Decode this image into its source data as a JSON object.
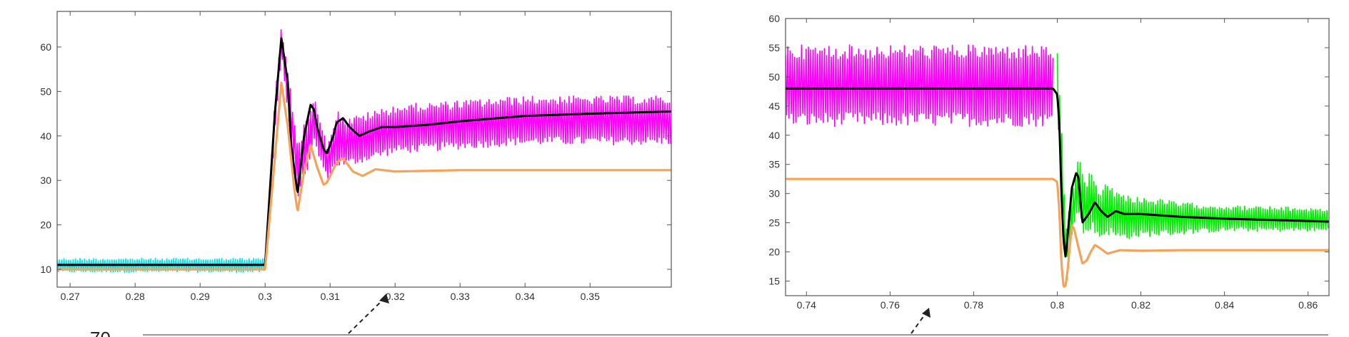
{
  "chart_data": [
    {
      "type": "line",
      "title": "",
      "xlabel": "",
      "ylabel": "",
      "xlim": [
        0.268,
        0.3625
      ],
      "ylim": [
        6,
        68
      ],
      "grid": false,
      "xticks": [
        "0.27",
        "0.28",
        "0.29",
        "0.3",
        "0.31",
        "0.32",
        "0.33",
        "0.34",
        "0.35"
      ],
      "xtick_values": [
        0.27,
        0.28,
        0.29,
        0.3,
        0.31,
        0.32,
        0.33,
        0.34,
        0.35
      ],
      "yticks": [
        "10",
        "20",
        "30",
        "40",
        "50",
        "60"
      ],
      "ytick_values": [
        10,
        20,
        30,
        40,
        50,
        60
      ],
      "series": [
        {
          "color": "#00e5ee",
          "style": "noise-band",
          "x": [
            0.268,
            0.3
          ],
          "low": [
            9.3,
            9.3
          ],
          "high": [
            12.5,
            12.5
          ]
        },
        {
          "color": "#ff00ff",
          "style": "noise-band",
          "x": [
            0.3,
            0.3015,
            0.3025,
            0.304,
            0.305,
            0.3065,
            0.3075,
            0.3095,
            0.311,
            0.3125,
            0.315,
            0.32,
            0.33,
            0.34,
            0.3625
          ],
          "low": [
            11,
            40,
            58,
            38,
            26,
            32,
            38,
            30,
            33,
            33,
            34,
            36,
            37,
            38,
            38
          ],
          "high": [
            11,
            48,
            65,
            50,
            38,
            45,
            50,
            38,
            46,
            44,
            45,
            47,
            48,
            49,
            49
          ]
        },
        {
          "color": "#000000",
          "style": "line",
          "x": [
            0.268,
            0.3,
            0.3015,
            0.3025,
            0.3035,
            0.304,
            0.305,
            0.306,
            0.307,
            0.3075,
            0.308,
            0.309,
            0.3095,
            0.3105,
            0.311,
            0.312,
            0.313,
            0.3145,
            0.316,
            0.318,
            0.32,
            0.325,
            0.33,
            0.34,
            0.35,
            0.3625
          ],
          "y": [
            11,
            11,
            45,
            62,
            52,
            38,
            27,
            40,
            47,
            46,
            42,
            37,
            36,
            40,
            43,
            44,
            42,
            40,
            41,
            42,
            42,
            42.5,
            43.3,
            44.5,
            45,
            45.5
          ]
        },
        {
          "color": "#f5a35a",
          "style": "line",
          "x": [
            0.268,
            0.3,
            0.3015,
            0.3025,
            0.3035,
            0.3045,
            0.305,
            0.306,
            0.307,
            0.308,
            0.309,
            0.3095,
            0.311,
            0.312,
            0.3135,
            0.315,
            0.317,
            0.32,
            0.33,
            0.3625
          ],
          "y": [
            10,
            10,
            35,
            52,
            42,
            28,
            23,
            32,
            38,
            33,
            29,
            29.5,
            34,
            35,
            32,
            31,
            32.5,
            32,
            32.3,
            32.3
          ]
        }
      ]
    },
    {
      "type": "line",
      "title": "",
      "xlabel": "",
      "ylabel": "",
      "xlim": [
        0.735,
        0.865
      ],
      "ylim": [
        12.5,
        60
      ],
      "grid": false,
      "xticks": [
        "0.74",
        "0.76",
        "0.78",
        "0.8",
        "0.82",
        "0.84",
        "0.86"
      ],
      "xtick_values": [
        0.74,
        0.76,
        0.78,
        0.8,
        0.82,
        0.84,
        0.86
      ],
      "yticks": [
        "15",
        "20",
        "25",
        "30",
        "35",
        "40",
        "45",
        "50",
        "55",
        "60"
      ],
      "ytick_values": [
        15,
        20,
        25,
        30,
        35,
        40,
        45,
        50,
        55,
        60
      ],
      "series": [
        {
          "color": "#ff00ff",
          "style": "noise-band",
          "x": [
            0.735,
            0.799
          ],
          "low": [
            41.5,
            41.5
          ],
          "high": [
            55.5,
            55.5
          ]
        },
        {
          "color": "#00ee00",
          "style": "noise-band",
          "x": [
            0.8,
            0.801,
            0.802,
            0.8035,
            0.805,
            0.8065,
            0.808,
            0.81,
            0.812,
            0.815,
            0.82,
            0.83,
            0.84,
            0.865
          ],
          "low": [
            45,
            30,
            18,
            22,
            27,
            22,
            24,
            22,
            23,
            22,
            22.5,
            23,
            23.5,
            23.5
          ],
          "high": [
            55,
            42,
            24,
            30,
            37,
            32,
            34,
            31,
            32,
            30,
            29.5,
            28.5,
            28,
            27.5
          ]
        },
        {
          "color": "#000000",
          "style": "line",
          "x": [
            0.735,
            0.799,
            0.8,
            0.8005,
            0.801,
            0.8015,
            0.802,
            0.803,
            0.8035,
            0.8045,
            0.805,
            0.806,
            0.807,
            0.8075,
            0.809,
            0.8105,
            0.812,
            0.814,
            0.816,
            0.82,
            0.83,
            0.84,
            0.865
          ],
          "y": [
            48,
            48,
            47,
            42,
            30,
            22,
            19,
            27,
            31,
            33.5,
            33,
            25,
            26,
            26.5,
            28.5,
            27,
            26,
            27,
            26.5,
            26.5,
            26,
            25.7,
            25.2
          ]
        },
        {
          "color": "#f5a35a",
          "style": "line",
          "x": [
            0.735,
            0.799,
            0.8,
            0.8005,
            0.801,
            0.8015,
            0.802,
            0.8025,
            0.803,
            0.8035,
            0.804,
            0.805,
            0.806,
            0.807,
            0.808,
            0.809,
            0.8105,
            0.812,
            0.815,
            0.82,
            0.83,
            0.865
          ],
          "y": [
            32.5,
            32.5,
            32,
            27,
            18,
            14,
            14.2,
            17,
            21,
            24.5,
            24,
            21,
            18,
            18.5,
            20,
            21.2,
            20.5,
            19.7,
            20.3,
            20.2,
            20.3,
            20.3
          ]
        }
      ]
    }
  ],
  "annotations": {
    "fragment_text": "70"
  }
}
